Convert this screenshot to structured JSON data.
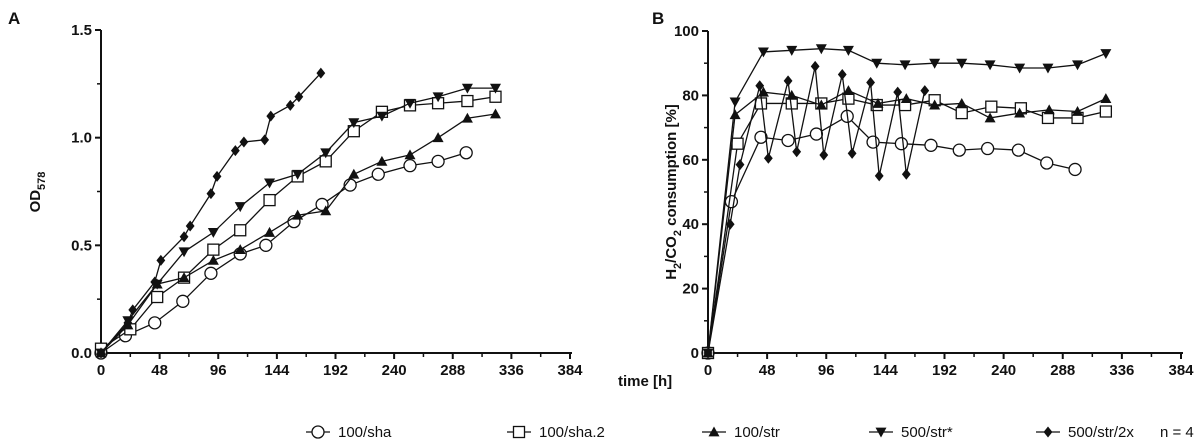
{
  "chart_data": [
    {
      "type": "line",
      "panel_label": "A",
      "xlabel": "",
      "ylabel": "OD",
      "ylabel_sub": "578",
      "xlim": [
        0,
        384
      ],
      "ylim": [
        0,
        1.5
      ],
      "xticks": [
        "0",
        "48",
        "96",
        "144",
        "192",
        "240",
        "288",
        "336",
        "384"
      ],
      "yticks": [
        "0.0",
        "0.5",
        "1.0",
        "1.5"
      ],
      "grid": false,
      "series": [
        {
          "name": "100/sha",
          "marker": "circle-open",
          "x": [
            0,
            20,
            44,
            67,
            90,
            114,
            135,
            158,
            181,
            204,
            227,
            253,
            276,
            299
          ],
          "y": [
            0,
            0.08,
            0.14,
            0.24,
            0.37,
            0.46,
            0.5,
            0.61,
            0.69,
            0.78,
            0.83,
            0.87,
            0.89,
            0.93
          ]
        },
        {
          "name": "100/sha.2",
          "marker": "square-open",
          "x": [
            0,
            24,
            46,
            68,
            92,
            114,
            138,
            161,
            184,
            207,
            230,
            253,
            276,
            300,
            323
          ],
          "y": [
            0.02,
            0.11,
            0.26,
            0.35,
            0.48,
            0.57,
            0.71,
            0.82,
            0.89,
            1.03,
            1.12,
            1.15,
            1.16,
            1.17,
            1.19
          ]
        },
        {
          "name": "100/str",
          "marker": "triangle-up",
          "x": [
            0,
            22,
            46,
            68,
            92,
            114,
            138,
            161,
            184,
            207,
            230,
            253,
            276,
            300,
            323
          ],
          "y": [
            0,
            0.13,
            0.32,
            0.35,
            0.43,
            0.48,
            0.56,
            0.64,
            0.66,
            0.83,
            0.89,
            0.92,
            1.0,
            1.09,
            1.11
          ]
        },
        {
          "name": "500/str*",
          "marker": "triangle-down",
          "x": [
            0,
            22,
            46,
            68,
            92,
            114,
            138,
            161,
            184,
            207,
            230,
            253,
            276,
            300,
            323
          ],
          "y": [
            0,
            0.15,
            0.32,
            0.47,
            0.56,
            0.68,
            0.79,
            0.83,
            0.93,
            1.07,
            1.1,
            1.16,
            1.19,
            1.23,
            1.23
          ]
        },
        {
          "name": "500/str/2x",
          "marker": "diamond",
          "x": [
            0,
            22,
            26,
            44,
            49,
            68,
            73,
            90,
            95,
            110,
            117,
            134,
            139,
            155,
            162,
            180
          ],
          "y": [
            0,
            0.14,
            0.2,
            0.33,
            0.43,
            0.54,
            0.59,
            0.74,
            0.82,
            0.94,
            0.98,
            0.99,
            1.1,
            1.15,
            1.19,
            1.3
          ]
        }
      ]
    },
    {
      "type": "line",
      "panel_label": "B",
      "xlabel": "time [h]",
      "ylabel": "H2/CO2 consumption [%]",
      "xlim": [
        0,
        384
      ],
      "ylim": [
        0,
        100
      ],
      "xticks": [
        "0",
        "48",
        "96",
        "144",
        "192",
        "240",
        "288",
        "336",
        "384"
      ],
      "yticks": [
        "0",
        "20",
        "40",
        "60",
        "80",
        "100"
      ],
      "grid": false,
      "series": [
        {
          "name": "100/sha",
          "marker": "circle-open",
          "x": [
            0,
            19,
            43,
            65,
            88,
            113,
            134,
            157,
            181,
            204,
            227,
            252,
            275,
            298
          ],
          "y": [
            0,
            47,
            67,
            66,
            68,
            73.5,
            65.5,
            65,
            64.5,
            63,
            63.5,
            63,
            59,
            57
          ]
        },
        {
          "name": "100/sha.2",
          "marker": "square-open",
          "x": [
            0,
            24,
            43,
            68,
            92,
            114,
            137,
            160,
            184,
            206,
            230,
            254,
            276,
            300,
            323
          ],
          "y": [
            0,
            65,
            77.5,
            77.5,
            77.5,
            79,
            77,
            77,
            78.5,
            74.5,
            76.5,
            76,
            73,
            73,
            75
          ]
        },
        {
          "name": "100/str",
          "marker": "triangle-up",
          "x": [
            0,
            22,
            45,
            68,
            92,
            114,
            138,
            161,
            184,
            206,
            229,
            253,
            277,
            300,
            323
          ],
          "y": [
            0,
            74,
            81,
            80,
            77,
            81.5,
            77.5,
            79,
            77,
            77.5,
            73,
            74.5,
            75.5,
            75,
            79
          ]
        },
        {
          "name": "500/str*",
          "marker": "triangle-down",
          "x": [
            0,
            22,
            45,
            68,
            92,
            114,
            137,
            160,
            184,
            206,
            229,
            253,
            276,
            300,
            323
          ],
          "y": [
            0,
            78,
            93.5,
            94,
            94.5,
            94,
            90,
            89.5,
            90,
            90,
            89.5,
            88.5,
            88.5,
            89.5,
            93
          ]
        },
        {
          "name": "500/str/2x",
          "marker": "diamond",
          "x": [
            0,
            18,
            26,
            42,
            49,
            65,
            72,
            87,
            94,
            109,
            117,
            132,
            139,
            154,
            161,
            176
          ],
          "y": [
            0,
            40,
            58.5,
            83,
            60.5,
            84.5,
            62.5,
            89,
            61.5,
            86.5,
            62,
            84,
            55,
            81,
            55.5,
            81.5
          ]
        }
      ]
    }
  ],
  "legend": {
    "position": "bottom",
    "items": [
      "100/sha",
      "100/sha.2",
      "100/str",
      "500/str*",
      "500/str/2x"
    ],
    "note": "n = 4"
  }
}
